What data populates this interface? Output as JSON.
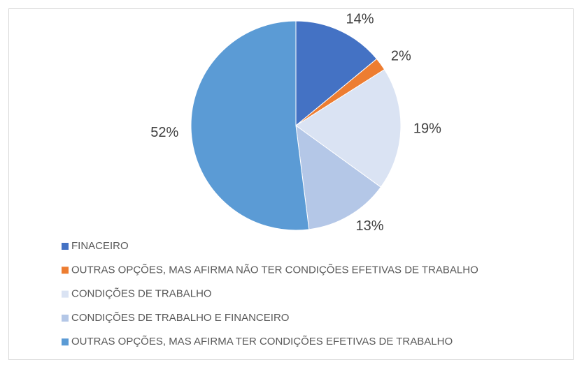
{
  "chart_data": {
    "type": "pie",
    "categories": [
      "FINACEIRO",
      "OUTRAS OPÇÕES, MAS AFIRMA NÃO TER CONDIÇÕES EFETIVAS DE TRABALHO",
      "CONDIÇÕES DE TRABALHO",
      "CONDIÇÕES DE TRABALHO E FINANCEIRO",
      "OUTRAS OPÇÕES, MAS AFIRMA TER CONDIÇÕES EFETIVAS DE TRABALHO"
    ],
    "values": [
      14,
      2,
      19,
      13,
      52
    ],
    "value_labels": [
      "14%",
      "2%",
      "19%",
      "13%",
      "52%"
    ],
    "colors": [
      "#4472c4",
      "#ed7d31",
      "#dae3f3",
      "#b4c7e7",
      "#5b9bd5"
    ],
    "legend": "bottom"
  }
}
